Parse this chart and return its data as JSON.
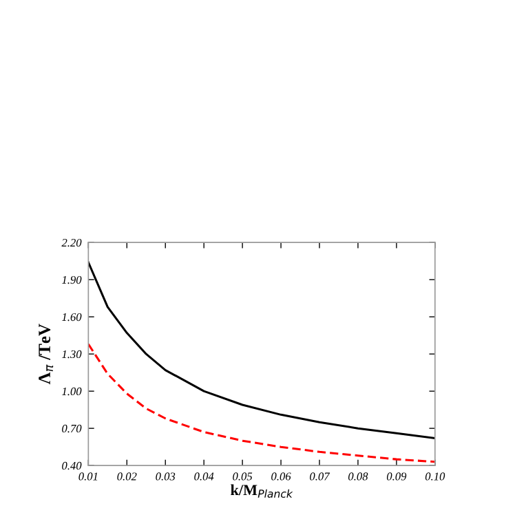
{
  "chart_data": {
    "type": "line",
    "xlabel": "k/M$_{Planck}$",
    "ylabel": "Λ$_{π}$ /TeV",
    "x": [
      0.01,
      0.015,
      0.02,
      0.025,
      0.03,
      0.04,
      0.05,
      0.06,
      0.07,
      0.08,
      0.09,
      0.1
    ],
    "series": [
      {
        "color": "#000000",
        "line_style": "solid",
        "values": [
          2.04,
          1.68,
          1.47,
          1.3,
          1.17,
          1.0,
          0.89,
          0.81,
          0.75,
          0.7,
          0.66,
          0.62
        ]
      },
      {
        "color": "#ff0000",
        "line_style": "dashed",
        "values": [
          1.38,
          1.14,
          0.98,
          0.86,
          0.78,
          0.67,
          0.6,
          0.55,
          0.51,
          0.48,
          0.45,
          0.43
        ]
      }
    ],
    "xlim": [
      0.01,
      0.1
    ],
    "ylim": [
      0.4,
      2.2
    ],
    "xticks": [
      0.01,
      0.02,
      0.03,
      0.04,
      0.05,
      0.06,
      0.07,
      0.08,
      0.09,
      {
        "value": 0.1,
        "label": "0.10"
      }
    ],
    "yticks": [
      {
        "value": 0.4,
        "label": "0.40"
      },
      {
        "value": 0.7,
        "label": "0.70"
      },
      {
        "value": 1.0,
        "label": "1.00"
      },
      {
        "value": 1.3,
        "label": "1.30"
      },
      {
        "value": 1.6,
        "label": "1.60"
      },
      {
        "value": 1.9,
        "label": "1.90"
      },
      {
        "value": 2.2,
        "label": "2.20"
      }
    ],
    "grid": false,
    "legend": false
  }
}
